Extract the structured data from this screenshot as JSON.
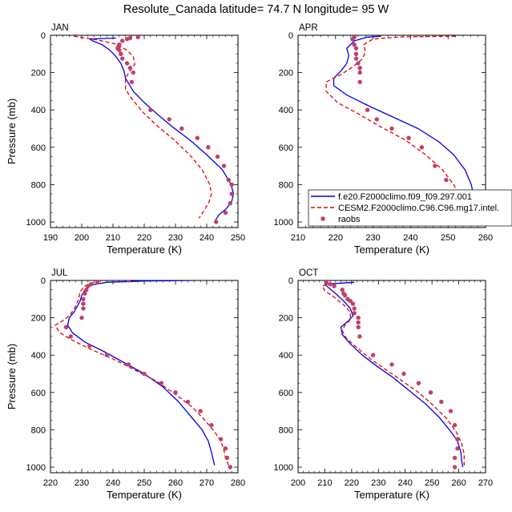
{
  "figure": {
    "title": "Resolute_Canada  latitude= 74.7 N longitude= 95 W"
  },
  "legend": {
    "entries": [
      {
        "label": "f.e20.F2000climo.f09_f09.297.001",
        "style": "solid",
        "color": "#0000e6"
      },
      {
        "label": "CESM2.F2000climo.C96.C96.mg17.intel.",
        "style": "dashed",
        "color": "#e60000"
      },
      {
        "label": "raobs",
        "style": "dots",
        "color": "#c0406a"
      }
    ]
  },
  "colors": {
    "model1": "#0000e6",
    "model2": "#e60000",
    "obs": "#c0406a"
  },
  "chart_data": [
    {
      "type": "line",
      "panel": "JAN",
      "xlabel": "Temperature (K)",
      "ylabel": "Pressure (mb)",
      "xlim": [
        190,
        250
      ],
      "ylim": [
        1030,
        0
      ],
      "xticks": [
        190,
        200,
        210,
        220,
        230,
        240,
        250
      ],
      "yticks": [
        0,
        200,
        400,
        600,
        800,
        1000
      ],
      "grid": false,
      "series": [
        {
          "name": "f.e20.F2000climo.f09_f09.297.001",
          "x": [
            211.0,
            202.5,
            203.5,
            206.5,
            209.0,
            211.0,
            212.5,
            213.5,
            214.0,
            216.5,
            220.0,
            224.0,
            229.0,
            234.5,
            240.0,
            245.0,
            247.8,
            248.6,
            248.0,
            246.2,
            244.0,
            242.8
          ],
          "y": [
            15,
            20,
            30,
            50,
            80,
            115,
            150,
            190,
            230,
            300,
            360,
            420,
            490,
            560,
            640,
            720,
            800,
            850,
            890,
            930,
            960,
            990
          ]
        },
        {
          "name": "CESM2.F2000climo.C96.C96.mg17.intel.",
          "x": [
            197.5,
            200.0,
            205.0,
            210.5,
            214.5,
            216.5,
            217.0,
            215.5,
            214.0,
            214.0,
            216.5,
            220.0,
            224.5,
            229.5,
            234.5,
            238.5,
            241.0,
            241.5,
            240.8,
            239.5,
            237.5
          ],
          "y": [
            5,
            12,
            25,
            45,
            80,
            115,
            155,
            190,
            230,
            290,
            350,
            420,
            490,
            560,
            640,
            720,
            800,
            850,
            890,
            930,
            980
          ]
        },
        {
          "name": "raobs",
          "x": [
            218.0,
            215.5,
            214.5,
            213.0,
            212.0,
            211.8,
            211.5,
            212.0,
            212.5,
            213.0,
            214.5,
            215.5,
            216.5,
            216.0,
            222.0,
            228.0,
            232.0,
            237.0,
            240.5,
            243.5,
            245.5,
            247.0,
            248.0,
            248.0,
            247.5,
            246.0,
            243.0
          ],
          "y": [
            10,
            15,
            20,
            30,
            50,
            60,
            70,
            80,
            100,
            125,
            150,
            175,
            200,
            250,
            400,
            450,
            500,
            550,
            600,
            650,
            700,
            775,
            800,
            850,
            900,
            950,
            1000
          ]
        }
      ]
    },
    {
      "type": "line",
      "panel": "APR",
      "xlabel": "Temperature (K)",
      "ylabel": "",
      "xlim": [
        210,
        260
      ],
      "ylim": [
        1030,
        0
      ],
      "xticks": [
        210,
        220,
        230,
        240,
        250,
        260
      ],
      "yticks": [
        0,
        200,
        400,
        600,
        800,
        1000
      ],
      "grid": false,
      "series": [
        {
          "name": "f.e20.F2000climo.f09_f09.297.001",
          "x": [
            232.0,
            228.5,
            225.0,
            223.0,
            223.5,
            223.0,
            221.5,
            219.5,
            219.5,
            223.0,
            229.0,
            235.5,
            242.0,
            247.5,
            251.5,
            254.5,
            256.2,
            256.8,
            256.2,
            255.0,
            254.3
          ],
          "y": [
            5,
            10,
            30,
            70,
            110,
            150,
            190,
            230,
            270,
            320,
            380,
            440,
            500,
            570,
            640,
            720,
            800,
            860,
            910,
            950,
            990
          ]
        },
        {
          "name": "CESM2.F2000climo.C96.C96.mg17.intel.",
          "x": [
            252.0,
            238.0,
            230.0,
            227.5,
            228.0,
            227.0,
            224.5,
            221.5,
            217.5,
            217.5,
            220.5,
            226.0,
            232.0,
            238.5,
            244.0,
            248.5,
            251.5,
            253.0,
            253.5,
            252.8,
            252.0
          ],
          "y": [
            5,
            8,
            20,
            50,
            90,
            130,
            170,
            210,
            250,
            300,
            360,
            420,
            490,
            560,
            640,
            720,
            800,
            860,
            910,
            950,
            990
          ]
        },
        {
          "name": "raobs",
          "x": [
            225.0,
            224.5,
            225.0,
            225.5,
            225.5,
            225.5,
            226.0,
            226.5,
            226.5,
            226.5,
            228.5,
            231.0,
            235.0,
            239.5,
            243.0,
            246.5,
            249.5,
            251.5,
            253.0,
            252.5,
            252.0
          ],
          "y": [
            10,
            20,
            50,
            70,
            100,
            125,
            150,
            175,
            200,
            250,
            400,
            450,
            500,
            550,
            600,
            700,
            775,
            850,
            900,
            950,
            1000
          ]
        }
      ]
    },
    {
      "type": "line",
      "panel": "JUL",
      "xlabel": "Temperature (K)",
      "ylabel": "Pressure (mb)",
      "xlim": [
        220,
        280
      ],
      "ylim": [
        1030,
        0
      ],
      "xticks": [
        220,
        230,
        240,
        250,
        260,
        270,
        280
      ],
      "yticks": [
        0,
        200,
        400,
        600,
        800,
        1000
      ],
      "grid": false,
      "series": [
        {
          "name": "f.e20.F2000climo.f09_f09.297.001",
          "x": [
            266.0,
            250.0,
            238.0,
            233.0,
            231.0,
            230.0,
            229.5,
            228.5,
            227.5,
            226.0,
            225.5,
            227.0,
            231.0,
            237.0,
            243.5,
            250.0,
            256.0,
            261.0,
            265.0,
            268.5,
            270.5,
            271.5,
            272.5
          ],
          "y": [
            0,
            3,
            10,
            25,
            50,
            80,
            110,
            140,
            170,
            200,
            240,
            280,
            330,
            380,
            440,
            500,
            570,
            650,
            730,
            800,
            860,
            920,
            990
          ]
        },
        {
          "name": "CESM2.F2000climo.C96.C96.mg17.intel.",
          "x": [
            234.0,
            231.0,
            229.5,
            229.0,
            228.0,
            226.5,
            224.5,
            221.5,
            223.0,
            227.0,
            233.0,
            240.0,
            247.0,
            254.0,
            260.0,
            265.5,
            269.5,
            272.5,
            274.5,
            275.5,
            276.0,
            277.0
          ],
          "y": [
            10,
            30,
            60,
            100,
            140,
            180,
            210,
            240,
            280,
            320,
            370,
            420,
            480,
            540,
            610,
            680,
            750,
            810,
            860,
            910,
            950,
            990
          ]
        },
        {
          "name": "raobs",
          "x": [
            245.0,
            235.0,
            233.0,
            232.0,
            231.5,
            231.0,
            230.5,
            230.5,
            230.5,
            230.0,
            225.0,
            226.5,
            232.5,
            238.0,
            245.0,
            250.0,
            255.5,
            260.0,
            264.0,
            268.0,
            271.5,
            274.5,
            276.0,
            276.5,
            277.5
          ],
          "y": [
            0,
            10,
            20,
            30,
            50,
            70,
            100,
            125,
            150,
            200,
            250,
            300,
            350,
            400,
            450,
            500,
            550,
            600,
            650,
            700,
            775,
            850,
            900,
            950,
            1000
          ]
        }
      ]
    },
    {
      "type": "line",
      "panel": "OCT",
      "xlabel": "Temperature (K)",
      "ylabel": "",
      "xlim": [
        200,
        270
      ],
      "ylim": [
        1030,
        0
      ],
      "xticks": [
        200,
        210,
        220,
        230,
        240,
        250,
        260,
        270
      ],
      "yticks": [
        0,
        200,
        400,
        600,
        800,
        1000
      ],
      "grid": false,
      "series": [
        {
          "name": "f.e20.F2000climo.f09_f09.297.001",
          "x": [
            221.0,
            210.0,
            211.5,
            214.0,
            217.0,
            219.5,
            220.5,
            218.5,
            216.0,
            216.5,
            219.5,
            224.0,
            229.5,
            235.5,
            241.5,
            247.5,
            252.5,
            256.5,
            259.5,
            260.8,
            261.0,
            261.5
          ],
          "y": [
            10,
            20,
            40,
            70,
            110,
            150,
            190,
            220,
            250,
            290,
            340,
            400,
            460,
            520,
            590,
            660,
            730,
            800,
            860,
            920,
            960,
            1000
          ]
        },
        {
          "name": "CESM2.F2000climo.C96.C96.mg17.intel.",
          "x": [
            213.0,
            209.0,
            210.0,
            213.5,
            217.0,
            219.5,
            219.5,
            217.5,
            216.5,
            218.0,
            222.0,
            227.0,
            233.0,
            239.0,
            245.0,
            250.5,
            255.5,
            259.0,
            261.0,
            262.0,
            262.0
          ],
          "y": [
            15,
            30,
            55,
            90,
            130,
            170,
            210,
            240,
            270,
            310,
            360,
            420,
            480,
            540,
            600,
            670,
            740,
            810,
            870,
            930,
            990
          ]
        },
        {
          "name": "raobs",
          "x": [
            210.5,
            212.0,
            213.5,
            216.5,
            217.0,
            217.5,
            218.5,
            219.5,
            220.5,
            221.0,
            221.0,
            222.5,
            222.5,
            222.5,
            223.0,
            228.0,
            235.0,
            239.5,
            245.0,
            249.5,
            253.5,
            257.0,
            258.5,
            259.5,
            259.5,
            258.5,
            258.5
          ],
          "y": [
            10,
            20,
            30,
            50,
            70,
            80,
            100,
            110,
            125,
            150,
            175,
            200,
            225,
            250,
            300,
            400,
            450,
            500,
            550,
            600,
            650,
            700,
            775,
            850,
            900,
            950,
            1000
          ]
        }
      ]
    }
  ]
}
